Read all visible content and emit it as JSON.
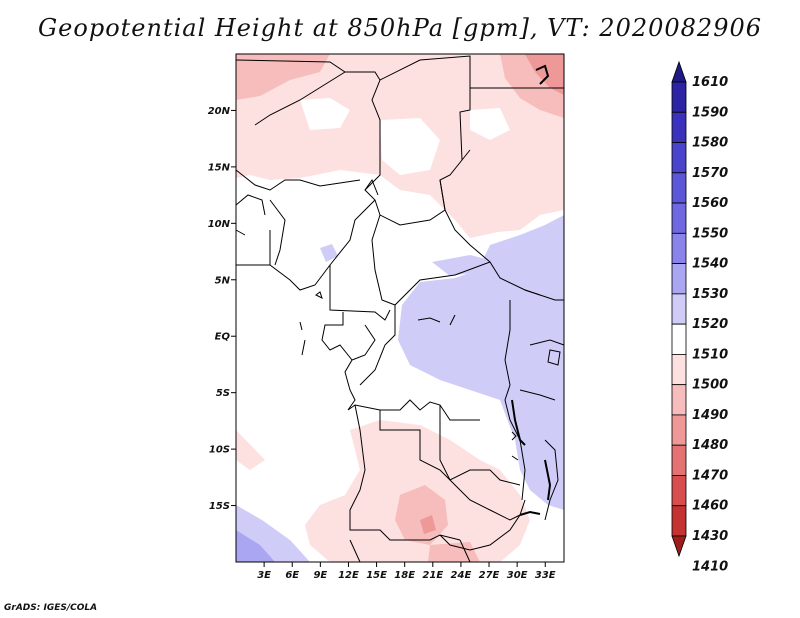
{
  "title": "Geopotential Height at 850hPa [gpm], VT: 2020082906",
  "credit": "GrADS: IGES/COLA",
  "map": {
    "lon_range": [
      0,
      35
    ],
    "lat_range": [
      -20,
      25
    ],
    "lat_ticks": [
      {
        "value": 20,
        "label": "20N"
      },
      {
        "value": 15,
        "label": "15N"
      },
      {
        "value": 10,
        "label": "10N"
      },
      {
        "value": 5,
        "label": "5N"
      },
      {
        "value": 0,
        "label": "EQ"
      },
      {
        "value": -5,
        "label": "5S"
      },
      {
        "value": -10,
        "label": "10S"
      },
      {
        "value": -15,
        "label": "15S"
      }
    ],
    "lon_ticks": [
      {
        "value": 3,
        "label": "3E"
      },
      {
        "value": 6,
        "label": "6E"
      },
      {
        "value": 9,
        "label": "9E"
      },
      {
        "value": 12,
        "label": "12E"
      },
      {
        "value": 15,
        "label": "15E"
      },
      {
        "value": 18,
        "label": "18E"
      },
      {
        "value": 21,
        "label": "21E"
      },
      {
        "value": 24,
        "label": "24E"
      },
      {
        "value": 27,
        "label": "27E"
      },
      {
        "value": 30,
        "label": "30E"
      },
      {
        "value": 33,
        "label": "33E"
      }
    ]
  },
  "colorbar": {
    "labels": [
      "1610",
      "1590",
      "1580",
      "1570",
      "1560",
      "1550",
      "1540",
      "1530",
      "1520",
      "1510",
      "1500",
      "1490",
      "1480",
      "1470",
      "1460",
      "1430",
      "1410"
    ],
    "colors": [
      "#201a84",
      "#2c24a4",
      "#3a32bc",
      "#4a44cc",
      "#5c56d8",
      "#7068e0",
      "#8a84ea",
      "#aaa6f2",
      "#cfcdf8",
      "#ffffff",
      "#fde0e0",
      "#f7bcbc",
      "#ee9898",
      "#e47272",
      "#d84e4e",
      "#c43232",
      "#a01c1c"
    ]
  }
}
